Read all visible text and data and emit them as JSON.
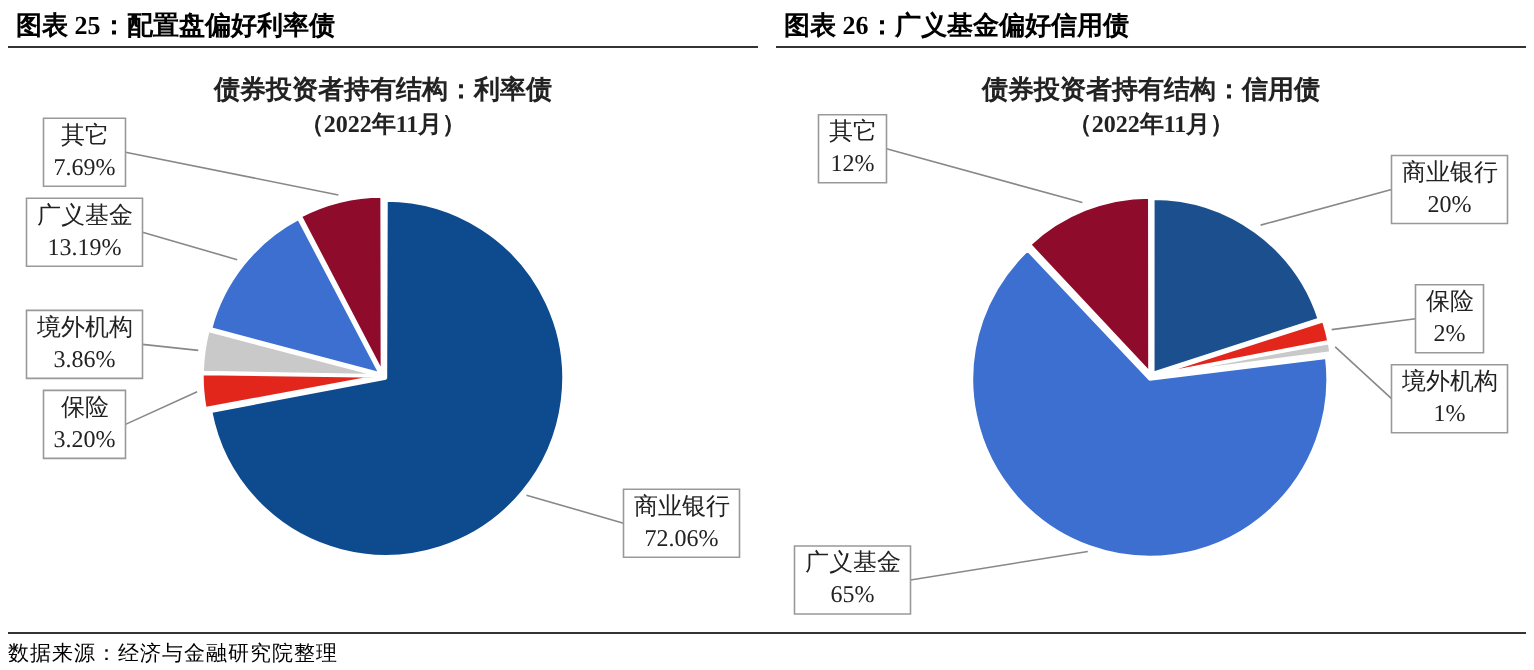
{
  "chart_data": [
    {
      "type": "pie",
      "title": "债券投资者持有结构：利率债",
      "subtitle": "（2022年11月）",
      "annotations": [
        "图表 25：配置盘偏好利率债",
        "数据来源：经济与金融研究院整理"
      ],
      "categories": [
        "商业银行",
        "保险",
        "境外机构",
        "广义基金",
        "其它"
      ],
      "values": [
        72.06,
        3.2,
        3.86,
        13.19,
        7.69
      ],
      "value_labels": [
        "72.06%",
        "3.20%",
        "3.86%",
        "13.19%",
        "7.69%"
      ],
      "colors": [
        "#0d4a8e",
        "#e3261c",
        "#c9c9c9",
        "#3c6fd0",
        "#8e0b2c"
      ]
    },
    {
      "type": "pie",
      "title": "债券投资者持有结构：信用债",
      "subtitle": "（2022年11月）",
      "annotations": [
        "图表 26：广义基金偏好信用债"
      ],
      "categories": [
        "商业银行",
        "保险",
        "境外机构",
        "广义基金",
        "其它"
      ],
      "values": [
        20,
        2,
        1,
        65,
        12
      ],
      "value_labels": [
        "20%",
        "2%",
        "1%",
        "65%",
        "12%"
      ],
      "colors": [
        "#1b4f8d",
        "#e3261c",
        "#c9c9c9",
        "#3c6fd0",
        "#8e0b2c"
      ]
    }
  ]
}
